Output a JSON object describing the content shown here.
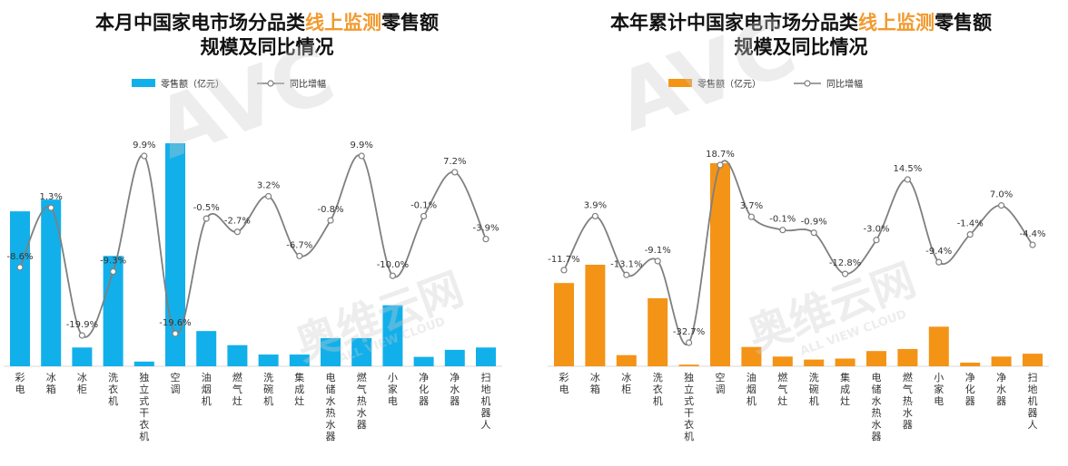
{
  "panels": [
    {
      "title_line1_a": "本月中国家电市场分品类",
      "title_line1_highlight": "线上监测",
      "title_line1_b": "零售额",
      "title_line2": "规模及同比情况",
      "legend_bar": "零售额（亿元）",
      "legend_line": "同比增幅"
    },
    {
      "title_line1_a": "本年累计中国家电市场分品类",
      "title_line1_highlight": "线上监测",
      "title_line1_b": "零售额",
      "title_line2": "规模及同比情况",
      "legend_bar": "零售额（亿元）",
      "legend_line": "同比增幅"
    }
  ],
  "watermarks": [
    "AVC",
    "奥维云网",
    "ALL VIEW CLOUD"
  ],
  "colors": {
    "bar_left": "#12B0EA",
    "bar_right": "#F39417",
    "line": "#7F7F7F",
    "highlight": "#F29A2E"
  },
  "chart_data": [
    {
      "type": "bar",
      "categories": [
        "彩电",
        "冰箱",
        "冰柜",
        "洗衣机",
        "独立式干衣机",
        "空调",
        "油烟机",
        "燃气灶",
        "洗碗机",
        "集成灶",
        "电储水热水器",
        "燃气热水器",
        "小家电",
        "净化器",
        "净水器",
        "扫地机器人"
      ],
      "series": [
        {
          "name": "零售额（亿元）",
          "type": "bar",
          "values": [
            66,
            71,
            8,
            47,
            2,
            95,
            15,
            9,
            5,
            5,
            12,
            12,
            26,
            4,
            7,
            8
          ]
        },
        {
          "name": "同比增幅",
          "type": "line",
          "values": [
            -8.6,
            1.3,
            -19.9,
            -9.3,
            9.9,
            -19.6,
            -0.5,
            -2.7,
            3.2,
            -6.7,
            -0.8,
            9.9,
            -10.0,
            -0.1,
            7.2,
            -3.9
          ],
          "labels": [
            "-8.6%",
            "1.3%",
            "-19.9%",
            "-9.3%",
            "9.9%",
            "-19.6%",
            "-0.5%",
            "-2.7%",
            "3.2%",
            "-6.7%",
            "-0.8%",
            "9.9%",
            "-10.0%",
            "-0.1%",
            "7.2%",
            "-3.9%"
          ]
        }
      ]
    },
    {
      "type": "bar",
      "categories": [
        "彩电",
        "冰箱",
        "冰柜",
        "洗衣机",
        "独立式干衣机",
        "空调",
        "油烟机",
        "燃气灶",
        "洗碗机",
        "集成灶",
        "电储水热水器",
        "燃气热水器",
        "小家电",
        "净化器",
        "净水器",
        "扫地机器人"
      ],
      "series": [
        {
          "name": "零售额（亿元）",
          "type": "bar",
          "values": [
            410,
            500,
            55,
            335,
            8,
            1000,
            95,
            48,
            33,
            38,
            75,
            85,
            195,
            18,
            48,
            62
          ]
        },
        {
          "name": "同比增幅",
          "type": "line",
          "values": [
            -11.7,
            3.9,
            -13.1,
            -9.1,
            -32.7,
            18.7,
            3.7,
            -0.1,
            -0.9,
            -12.8,
            -3.0,
            14.5,
            -9.4,
            -1.4,
            7.0,
            -4.4
          ],
          "labels": [
            "-11.7%",
            "3.9%",
            "-13.1%",
            "-9.1%",
            "-32.7%",
            "18.7%",
            "3.7%",
            "-0.1%",
            "-0.9%",
            "-12.8%",
            "-3.0%",
            "14.5%",
            "-9.4%",
            "-1.4%",
            "7.0%",
            "-4.4%"
          ]
        }
      ]
    }
  ]
}
